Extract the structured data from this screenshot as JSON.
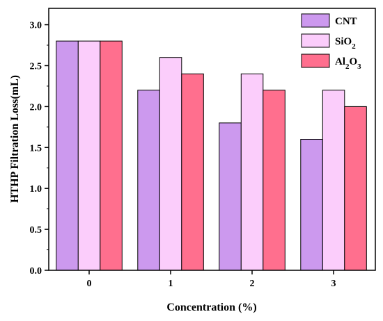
{
  "chart_data": {
    "type": "bar",
    "xlabel": "Concentration (%)",
    "ylabel": "HTHP Filtration Loss(mL)",
    "categories": [
      "0",
      "1",
      "2",
      "3"
    ],
    "ylim": [
      0,
      3.2
    ],
    "yticks": [
      "0.0",
      "0.5",
      "1.0",
      "1.5",
      "2.0",
      "2.5",
      "3.0"
    ],
    "grid": false,
    "legend_position": "top-right",
    "series": [
      {
        "name": "CNT",
        "color": "#cc99ee",
        "values": [
          2.8,
          2.2,
          1.8,
          1.6
        ]
      },
      {
        "name": "SiO2",
        "color": "#fbcdfb",
        "values": [
          2.8,
          2.6,
          2.4,
          2.2
        ]
      },
      {
        "name": "Al2O3",
        "color": "#ff6f8e",
        "values": [
          2.8,
          2.4,
          2.2,
          2.0
        ]
      }
    ]
  }
}
